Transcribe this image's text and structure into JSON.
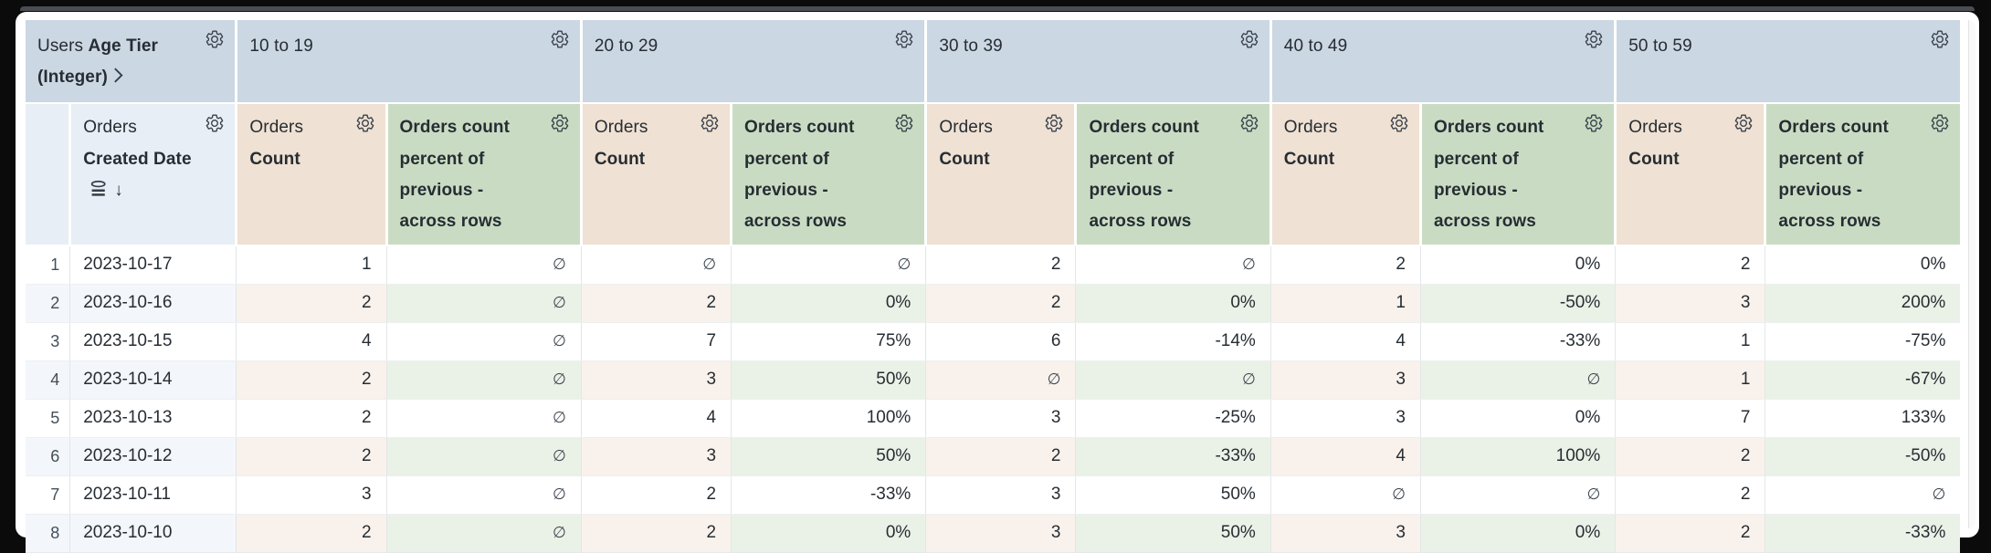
{
  "colors": {
    "pivot_header_bg": "#cbd7e3",
    "dimension_header_bg": "#e8eef5",
    "count_header_bg": "#efe1d3",
    "percent_header_bg": "#c9dcc3",
    "count_zebra_bg": "#f9f1eb",
    "percent_zebra_bg": "#eaf2e8",
    "dimension_zebra_bg": "#f3f6fa",
    "text": "#262d33"
  },
  "header": {
    "row_dimension": {
      "view_label": "Users",
      "field_label": "Age Tier (Integer)"
    },
    "row_field": {
      "view_label": "Orders",
      "field_label": "Created Date",
      "sort_arrow": "↓"
    },
    "pivot_values": [
      "10 to 19",
      "20 to 29",
      "30 to 39",
      "40 to 49",
      "50 to 59"
    ],
    "measure_count": {
      "view_label": "Orders",
      "field_label": "Count"
    },
    "measure_percent": {
      "label": "Orders count percent of previous - across rows"
    }
  },
  "body": {
    "null_symbol": "∅",
    "rows": [
      {
        "row_number": "1",
        "date": "2023-10-17",
        "values": [
          "1",
          "∅",
          "∅",
          "∅",
          "2",
          "∅",
          "2",
          "0%",
          "2",
          "0%"
        ]
      },
      {
        "row_number": "2",
        "date": "2023-10-16",
        "values": [
          "2",
          "∅",
          "2",
          "0%",
          "2",
          "0%",
          "1",
          "-50%",
          "3",
          "200%"
        ]
      },
      {
        "row_number": "3",
        "date": "2023-10-15",
        "values": [
          "4",
          "∅",
          "7",
          "75%",
          "6",
          "-14%",
          "4",
          "-33%",
          "1",
          "-75%"
        ]
      },
      {
        "row_number": "4",
        "date": "2023-10-14",
        "values": [
          "2",
          "∅",
          "3",
          "50%",
          "∅",
          "∅",
          "3",
          "∅",
          "1",
          "-67%"
        ]
      },
      {
        "row_number": "5",
        "date": "2023-10-13",
        "values": [
          "2",
          "∅",
          "4",
          "100%",
          "3",
          "-25%",
          "3",
          "0%",
          "7",
          "133%"
        ]
      },
      {
        "row_number": "6",
        "date": "2023-10-12",
        "values": [
          "2",
          "∅",
          "3",
          "50%",
          "2",
          "-33%",
          "4",
          "100%",
          "2",
          "-50%"
        ]
      },
      {
        "row_number": "7",
        "date": "2023-10-11",
        "values": [
          "3",
          "∅",
          "2",
          "-33%",
          "3",
          "50%",
          "∅",
          "∅",
          "2",
          "∅"
        ]
      },
      {
        "row_number": "8",
        "date": "2023-10-10",
        "values": [
          "2",
          "∅",
          "2",
          "0%",
          "3",
          "50%",
          "3",
          "0%",
          "2",
          "-33%"
        ]
      }
    ]
  }
}
